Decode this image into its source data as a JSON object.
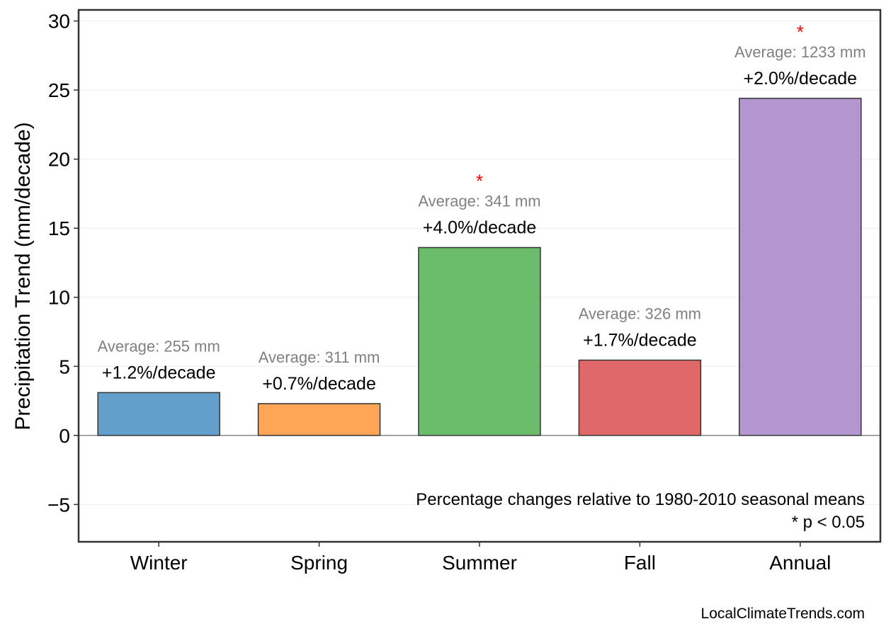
{
  "chart_data": {
    "type": "bar",
    "title": "",
    "xlabel": "",
    "ylabel": "Precipitation Trend (mm/decade)",
    "ylim": [
      -7.7,
      30.8
    ],
    "yticks": [
      -5,
      0,
      5,
      10,
      15,
      20,
      25,
      30
    ],
    "ytick_labels": [
      "−5",
      "0",
      "5",
      "10",
      "15",
      "20",
      "25",
      "30"
    ],
    "grid": true,
    "categories": [
      "Winter",
      "Spring",
      "Summer",
      "Fall",
      "Annual"
    ],
    "values": [
      3.1,
      2.3,
      13.6,
      5.45,
      24.4
    ],
    "colors": [
      "#62a0cb",
      "#ffa555",
      "#6bbd6b",
      "#e06868",
      "#b395cf"
    ],
    "percent_labels": [
      "+1.2%/decade",
      "+0.7%/decade",
      "+4.0%/decade",
      "+1.7%/decade",
      "+2.0%/decade"
    ],
    "average_labels": [
      "Average: 255 mm",
      "Average: 311 mm",
      "Average: 341 mm",
      "Average: 326 mm",
      "Average: 1233 mm"
    ],
    "significant": [
      false,
      false,
      true,
      false,
      true
    ],
    "significance_marker": "*",
    "annotations": [
      "Percentage changes relative to 1980-2010 seasonal means",
      "* p < 0.05"
    ],
    "footer": "LocalClimateTrends.com"
  }
}
